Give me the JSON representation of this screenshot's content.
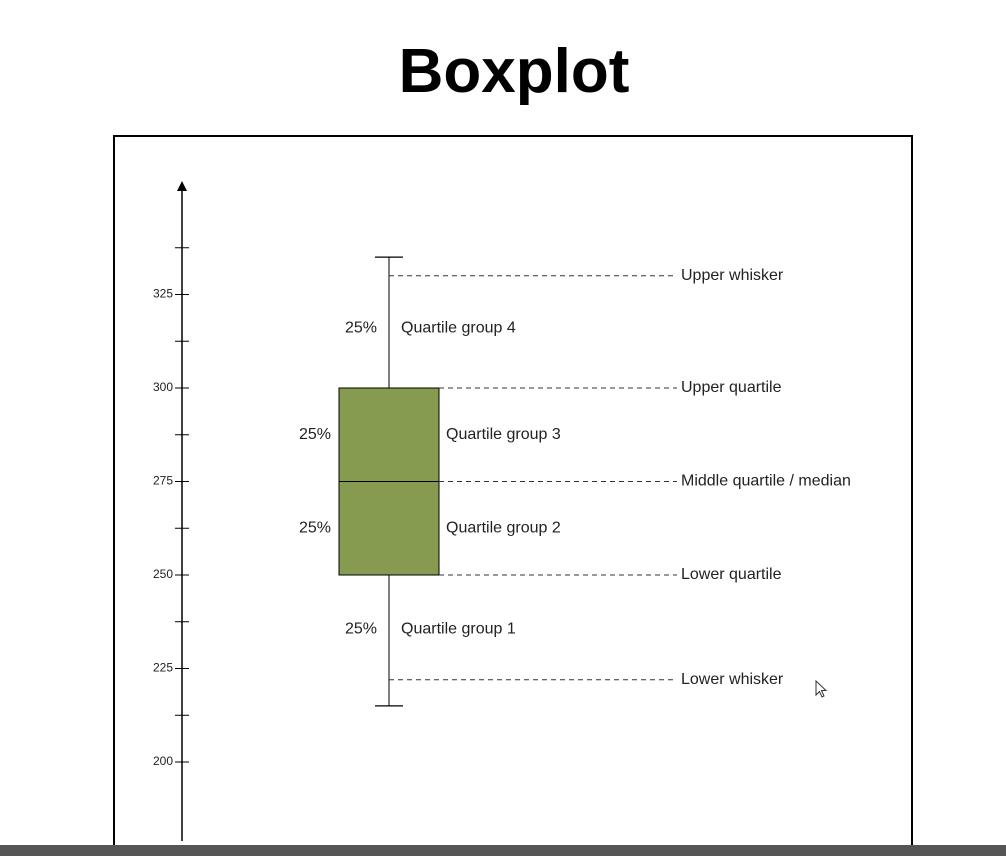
{
  "title": "Boxplot",
  "chart_data": {
    "type": "boxplot",
    "title": "Boxplot",
    "ylim": [
      183,
      352
    ],
    "ticks": {
      "labeled": [
        200,
        225,
        250,
        275,
        300,
        325
      ],
      "minor": [
        212.5,
        237.5,
        262.5,
        287.5,
        312.5,
        337.5
      ]
    },
    "box": {
      "whisker_low": 215,
      "lower_whisker_ref": 222,
      "q1": 250,
      "median": 275,
      "q3": 300,
      "upper_whisker_ref": 330,
      "whisker_high": 335,
      "fill": "#879b50"
    },
    "annotations": [
      {
        "text": "Upper whisker",
        "y": 330
      },
      {
        "text": "Upper quartile",
        "y": 300
      },
      {
        "text": "Middle quartile / median",
        "y": 275
      },
      {
        "text": "Lower quartile",
        "y": 250
      },
      {
        "text": "Lower whisker",
        "y": 222
      }
    ],
    "groups": [
      {
        "pct": "25%",
        "label": "Quartile group 4",
        "y": 316,
        "side": "whisker"
      },
      {
        "pct": "25%",
        "label": "Quartile group 3",
        "y": 287.5,
        "side": "box"
      },
      {
        "pct": "25%",
        "label": "Quartile group 2",
        "y": 262.5,
        "side": "box"
      },
      {
        "pct": "25%",
        "label": "Quartile group 1",
        "y": 235.5,
        "side": "whisker"
      }
    ]
  }
}
